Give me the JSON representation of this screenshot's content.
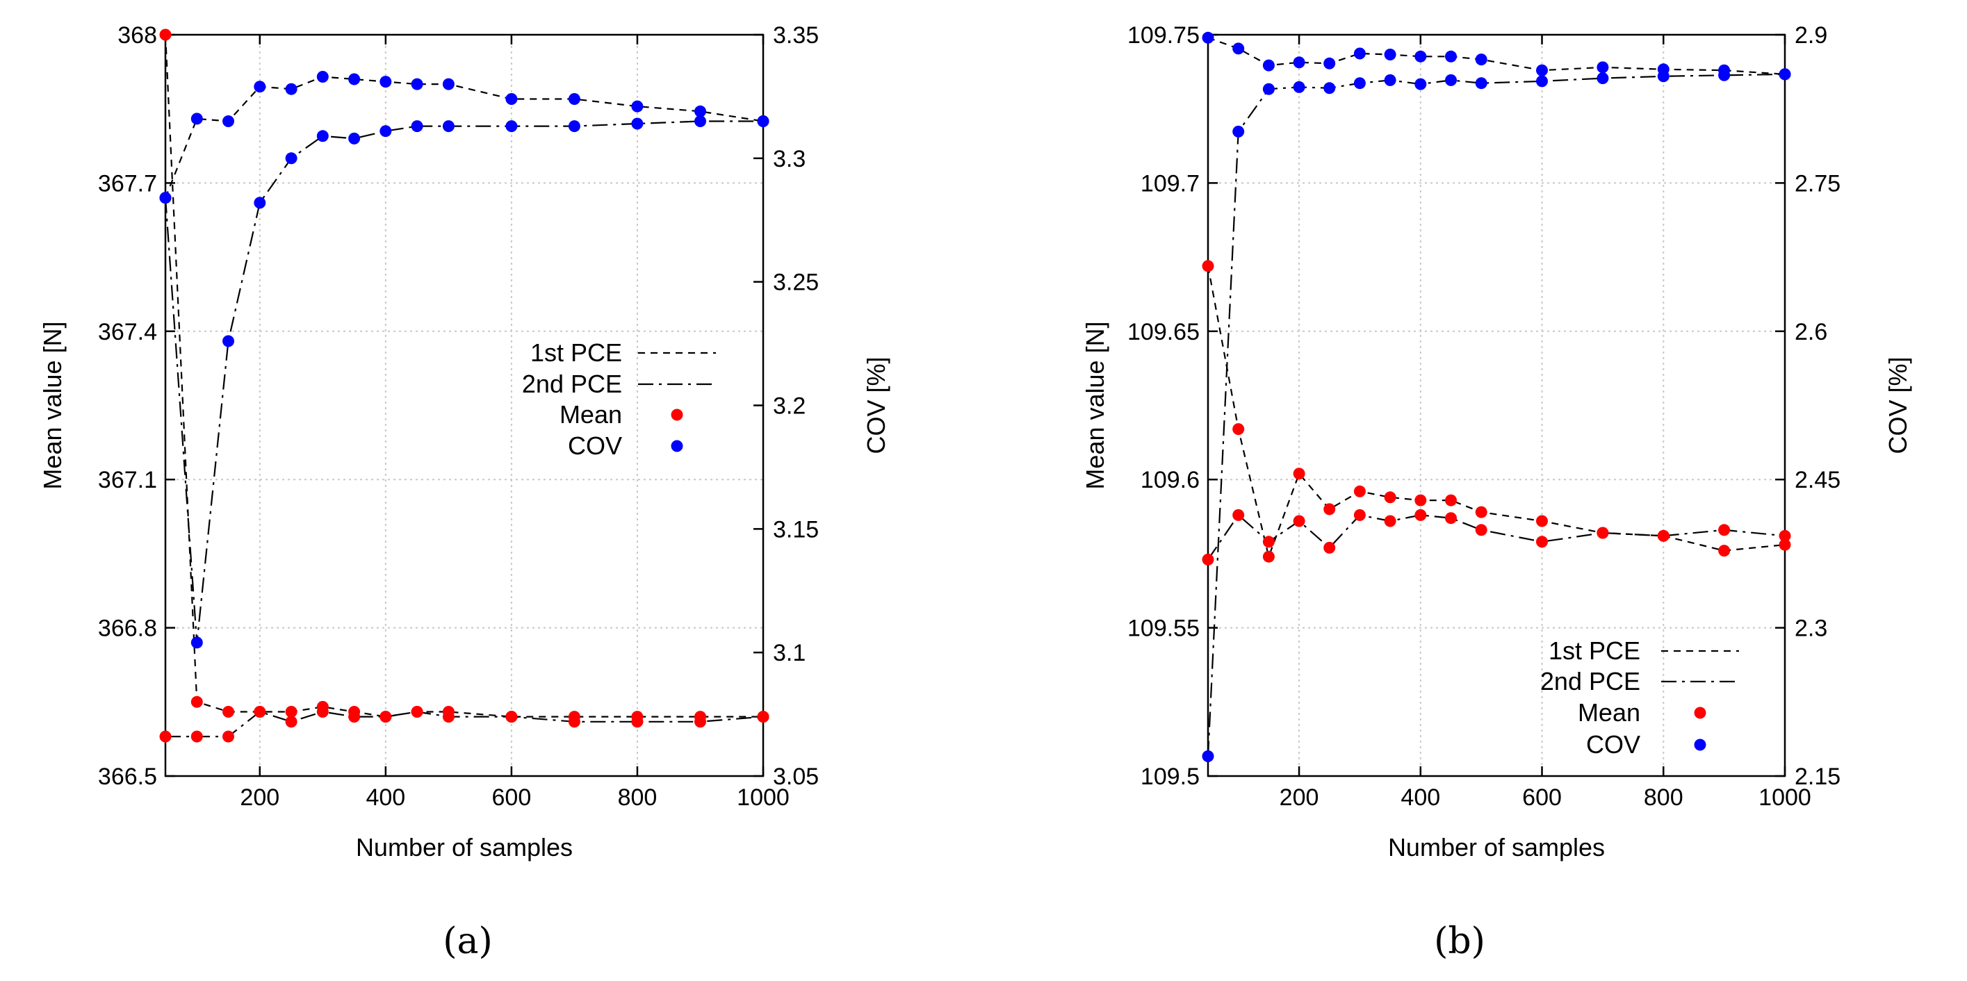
{
  "chart_data": [
    {
      "type": "line",
      "panel_label": "(a)",
      "xlabel": "Number of samples",
      "ylabel_left": "Mean value [N]",
      "ylabel_right": "COV [%]",
      "xlim": [
        50,
        1000
      ],
      "ylim_left": [
        366.5,
        368
      ],
      "ylim_right": [
        3.05,
        3.35
      ],
      "x_ticks": [
        200,
        400,
        600,
        800,
        1000
      ],
      "y_left_ticks": [
        366.5,
        366.8,
        367.1,
        367.4,
        367.7,
        368
      ],
      "y_right_ticks": [
        3.05,
        3.1,
        3.15,
        3.2,
        3.25,
        3.3,
        3.35
      ],
      "y_left_tick_labels": [
        "366.5",
        "366.8",
        "367.1",
        "367.4",
        "367.7",
        "368"
      ],
      "y_right_tick_labels": [
        "3.05",
        "3.1",
        "3.15",
        "3.2",
        "3.25",
        "3.3",
        "3.35"
      ],
      "legend": {
        "position": "center-right",
        "entries": [
          {
            "label": "1st PCE",
            "style": "dashed"
          },
          {
            "label": "2nd PCE",
            "style": "dashdot"
          },
          {
            "label": "Mean",
            "style": "marker",
            "color": "#ff0000"
          },
          {
            "label": "COV",
            "style": "marker",
            "color": "#0000ff"
          }
        ]
      },
      "x": [
        50,
        100,
        150,
        200,
        250,
        300,
        350,
        400,
        450,
        500,
        600,
        700,
        800,
        900,
        1000
      ],
      "series": [
        {
          "name": "Mean 1st PCE",
          "axis": "left",
          "line": "dashed",
          "color": "#ff0000",
          "values": [
            368.0,
            366.65,
            366.63,
            366.63,
            366.63,
            366.64,
            366.63,
            366.62,
            366.63,
            366.63,
            366.62,
            366.62,
            366.62,
            366.62,
            366.62
          ]
        },
        {
          "name": "Mean 2nd PCE",
          "axis": "left",
          "line": "dashdot",
          "color": "#ff0000",
          "values": [
            366.58,
            366.58,
            366.58,
            366.63,
            366.61,
            366.63,
            366.62,
            366.62,
            366.63,
            366.62,
            366.62,
            366.61,
            366.61,
            366.61,
            366.62
          ]
        },
        {
          "name": "COV 1st PCE",
          "axis": "right",
          "line": "dashed",
          "color": "#0000ff",
          "values": [
            3.284,
            3.316,
            3.315,
            3.329,
            3.328,
            3.333,
            3.332,
            3.331,
            3.33,
            3.33,
            3.324,
            3.324,
            3.321,
            3.319,
            3.315
          ]
        },
        {
          "name": "COV 2nd PCE",
          "axis": "right",
          "line": "dashdot",
          "color": "#0000ff",
          "values": [
            3.284,
            3.104,
            3.226,
            3.282,
            3.3,
            3.309,
            3.308,
            3.311,
            3.313,
            3.313,
            3.313,
            3.313,
            3.314,
            3.315,
            3.315
          ]
        }
      ]
    },
    {
      "type": "line",
      "panel_label": "(b)",
      "xlabel": "Number of samples",
      "ylabel_left": "Mean value [N]",
      "ylabel_right": "COV [%]",
      "xlim": [
        50,
        1000
      ],
      "ylim_left": [
        109.5,
        109.75
      ],
      "ylim_right": [
        2.15,
        2.9
      ],
      "x_ticks": [
        200,
        400,
        600,
        800,
        1000
      ],
      "y_left_ticks": [
        109.5,
        109.55,
        109.6,
        109.65,
        109.7,
        109.75
      ],
      "y_right_ticks": [
        2.15,
        2.3,
        2.45,
        2.6,
        2.75,
        2.9
      ],
      "y_left_tick_labels": [
        "109.5",
        "109.55",
        "109.6",
        "109.65",
        "109.7",
        "109.75"
      ],
      "y_right_tick_labels": [
        "2.15",
        "2.3",
        "2.45",
        "2.6",
        "2.75",
        "2.9"
      ],
      "legend": {
        "position": "bottom-right",
        "entries": [
          {
            "label": "1st PCE",
            "style": "dashed"
          },
          {
            "label": "2nd PCE",
            "style": "dashdot"
          },
          {
            "label": "Mean",
            "style": "marker",
            "color": "#ff0000"
          },
          {
            "label": "COV",
            "style": "marker",
            "color": "#0000ff"
          }
        ]
      },
      "x": [
        50,
        100,
        150,
        200,
        250,
        300,
        350,
        400,
        450,
        500,
        600,
        700,
        800,
        900,
        1000
      ],
      "series": [
        {
          "name": "Mean 1st PCE",
          "axis": "left",
          "line": "dashed",
          "color": "#ff0000",
          "values": [
            109.672,
            109.617,
            109.574,
            109.602,
            109.59,
            109.596,
            109.594,
            109.593,
            109.593,
            109.589,
            109.586,
            109.582,
            109.581,
            109.576,
            109.578
          ]
        },
        {
          "name": "Mean 2nd PCE",
          "axis": "left",
          "line": "dashdot",
          "color": "#ff0000",
          "values": [
            109.573,
            109.588,
            109.579,
            109.586,
            109.577,
            109.588,
            109.586,
            109.588,
            109.587,
            109.583,
            109.579,
            109.582,
            109.581,
            109.583,
            109.581
          ]
        },
        {
          "name": "COV 1st PCE",
          "axis": "right",
          "line": "dashed",
          "color": "#0000ff",
          "values": [
            2.897,
            2.886,
            2.869,
            2.872,
            2.871,
            2.881,
            2.88,
            2.878,
            2.878,
            2.875,
            2.864,
            2.867,
            2.865,
            2.864,
            2.86
          ]
        },
        {
          "name": "COV 2nd PCE",
          "axis": "right",
          "line": "dashdot",
          "color": "#0000ff",
          "values": [
            2.17,
            2.802,
            2.845,
            2.847,
            2.846,
            2.851,
            2.854,
            2.85,
            2.854,
            2.851,
            2.853,
            2.856,
            2.858,
            2.859,
            2.86
          ]
        }
      ]
    }
  ]
}
